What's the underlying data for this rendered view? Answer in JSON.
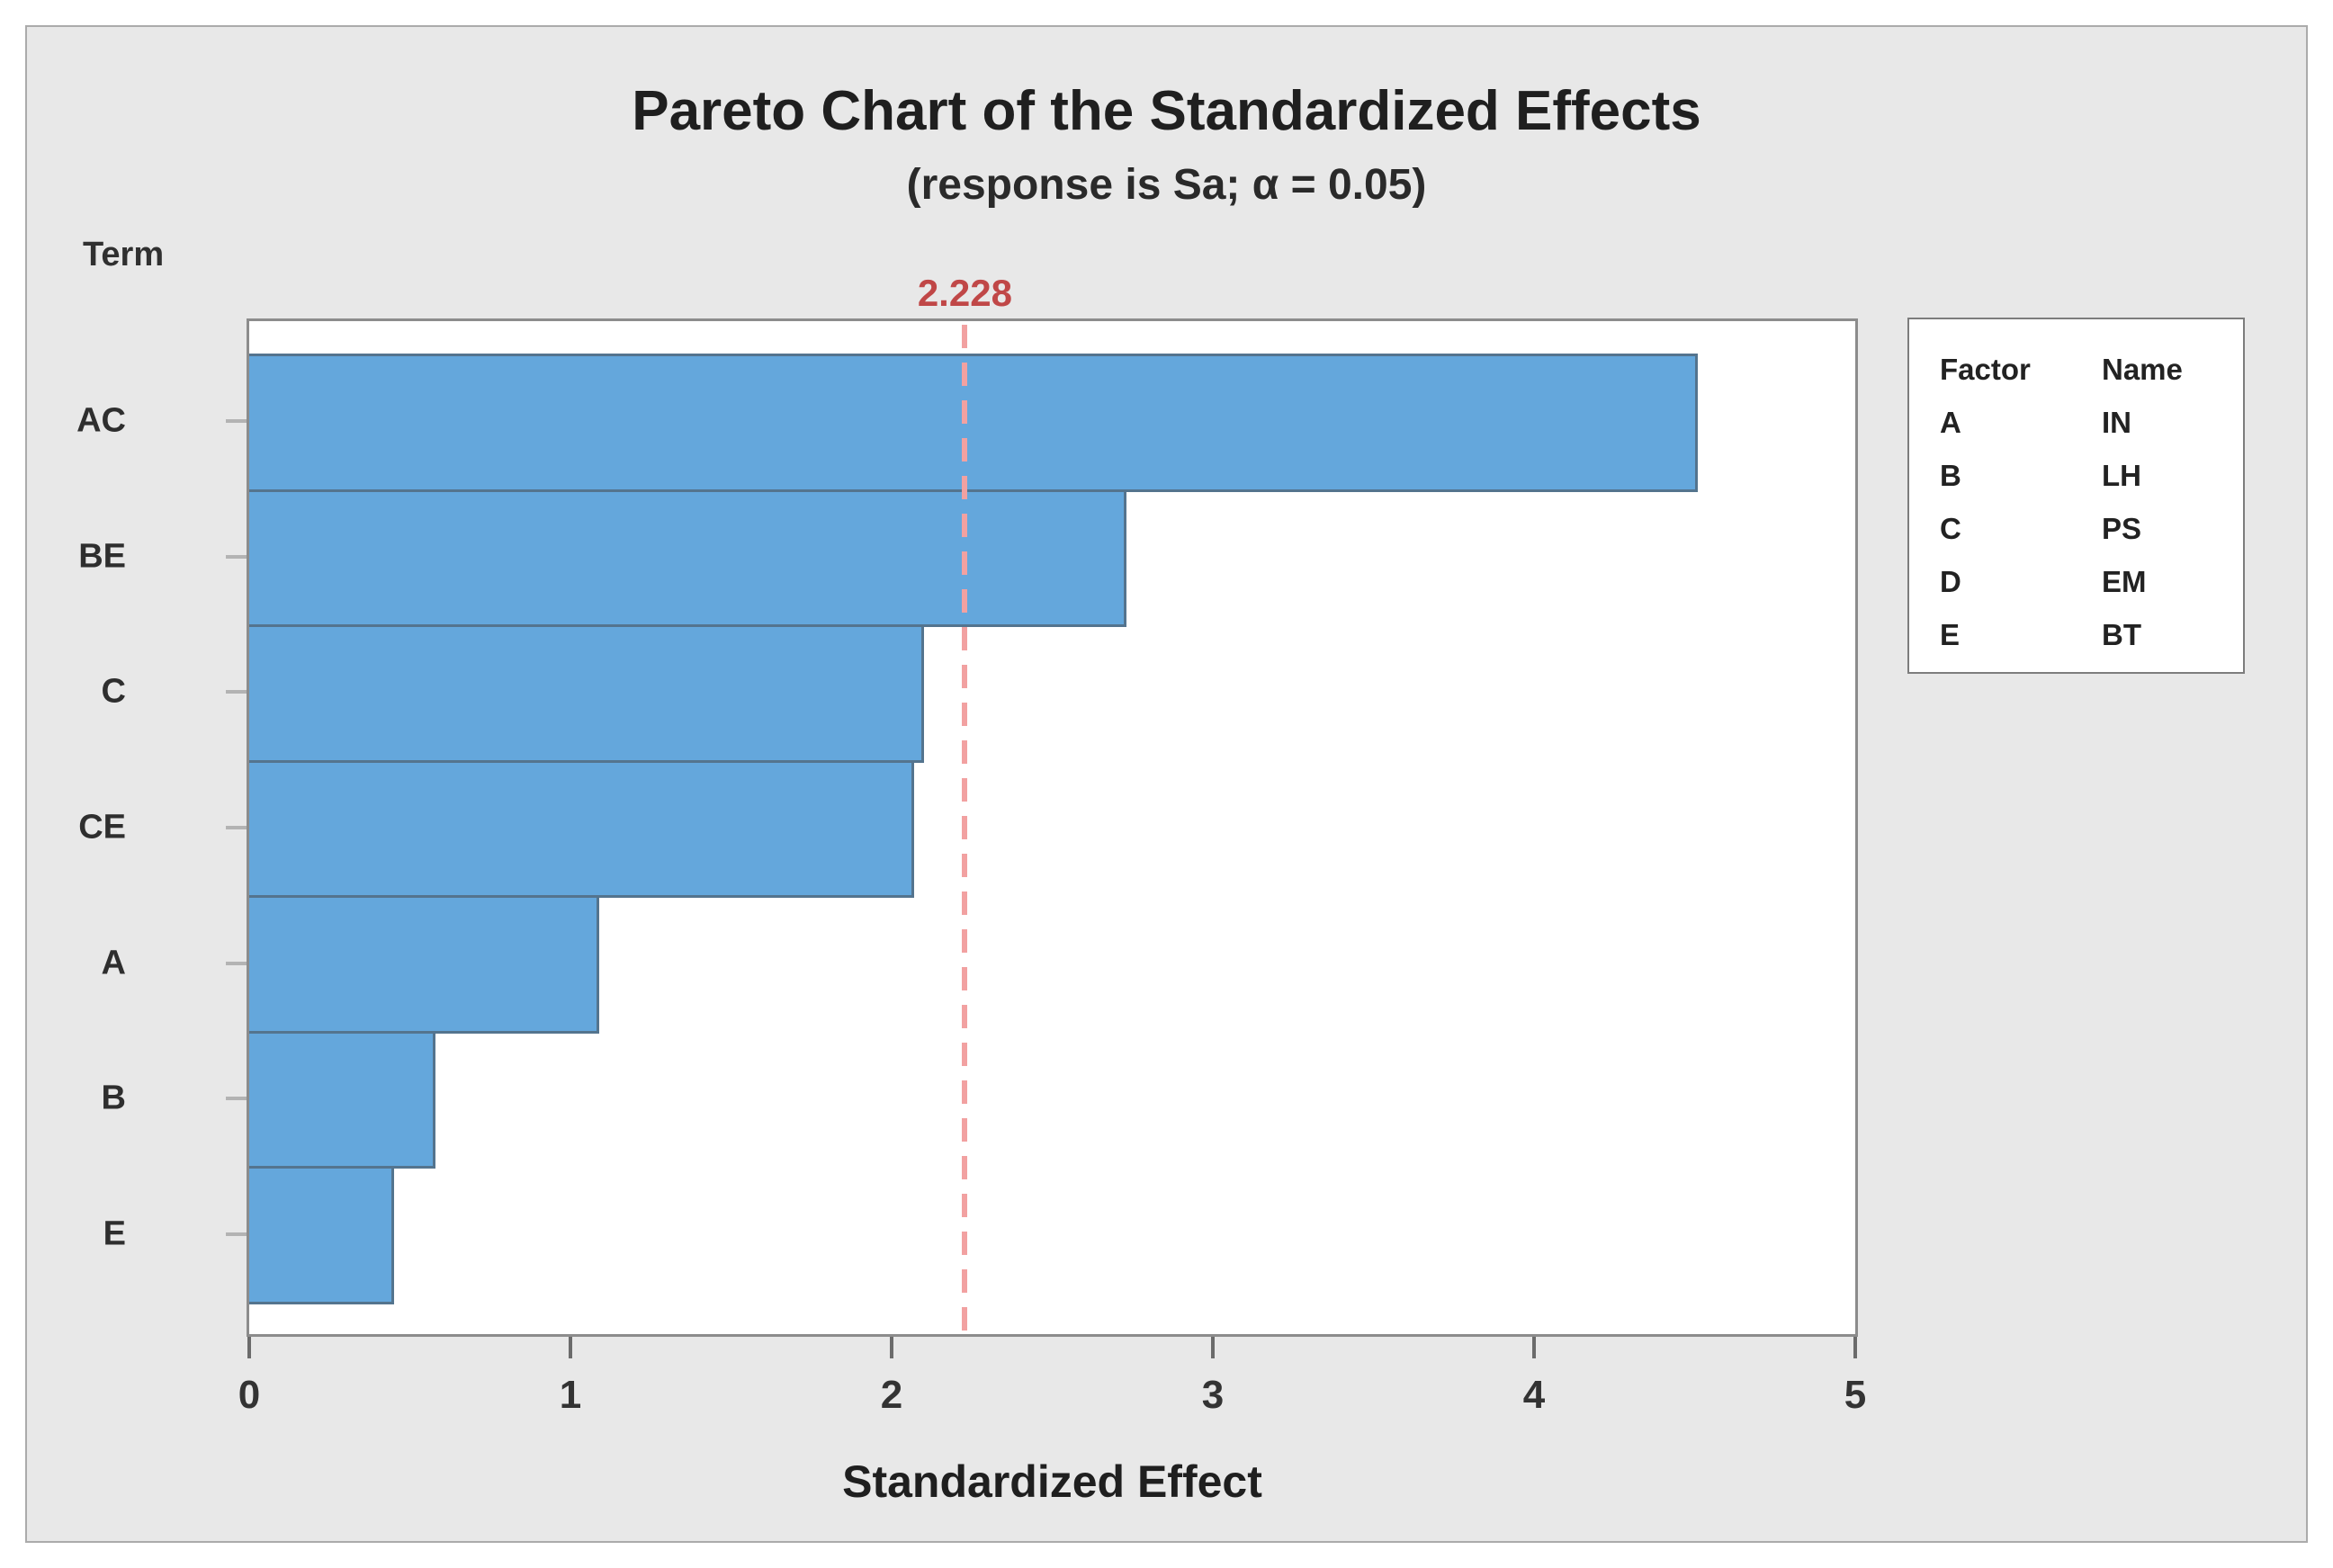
{
  "chart_data": {
    "type": "bar",
    "orientation": "horizontal",
    "title": "Pareto Chart of the Standardized Effects",
    "subtitle": "(response is Sa; α = 0.05)",
    "ylabel": "Term",
    "xlabel": "Standardized Effect",
    "categories": [
      "AC",
      "BE",
      "C",
      "CE",
      "A",
      "B",
      "E"
    ],
    "values": [
      4.51,
      2.73,
      2.1,
      2.07,
      1.09,
      0.58,
      0.45
    ],
    "xlim": [
      0,
      5
    ],
    "x_ticks": [
      "0",
      "1",
      "2",
      "3",
      "4",
      "5"
    ],
    "grid": false,
    "reference_line": {
      "value": 2.228,
      "label": "2.228"
    },
    "legend": {
      "position": "right",
      "headers": [
        "Factor",
        "Name"
      ],
      "rows": [
        {
          "factor": "A",
          "name": "IN"
        },
        {
          "factor": "B",
          "name": "LH"
        },
        {
          "factor": "C",
          "name": "PS"
        },
        {
          "factor": "D",
          "name": "EM"
        },
        {
          "factor": "E",
          "name": "BT"
        }
      ]
    },
    "colors": {
      "bar_fill": "#64a7dc",
      "bar_border": "#54748e",
      "reference_line": "#f2a1a1",
      "reference_label": "#c04747",
      "chart_background": "#e8e8e8",
      "plot_background": "#ffffff"
    }
  }
}
